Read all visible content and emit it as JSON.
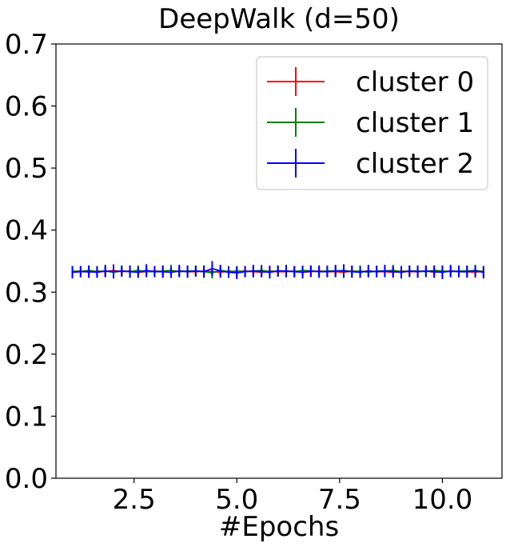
{
  "chart_data": {
    "type": "line",
    "title": "DeepWalk (d=50)",
    "xlabel": "#Epochs",
    "ylabel": "",
    "xlim": [
      0.6,
      11.45
    ],
    "ylim": [
      0.0,
      0.7
    ],
    "xticks": [
      2.5,
      5.0,
      7.5,
      10.0
    ],
    "xtick_labels": [
      "2.5",
      "5.0",
      "7.5",
      "10.0"
    ],
    "yticks": [
      0.0,
      0.1,
      0.2,
      0.3,
      0.4,
      0.5,
      0.6,
      0.7
    ],
    "ytick_labels": [
      "0.0",
      "0.1",
      "0.2",
      "0.3",
      "0.4",
      "0.5",
      "0.6",
      "0.7"
    ],
    "legend_position": "top-right",
    "x": [
      1.0,
      1.2,
      1.4,
      1.6,
      1.8,
      2.0,
      2.2,
      2.4,
      2.6,
      2.8,
      3.0,
      3.2,
      3.4,
      3.6,
      3.8,
      4.0,
      4.2,
      4.4,
      4.6,
      4.8,
      5.0,
      5.2,
      5.4,
      5.6,
      5.8,
      6.0,
      6.2,
      6.4,
      6.6,
      6.8,
      7.0,
      7.2,
      7.4,
      7.6,
      7.8,
      8.0,
      8.2,
      8.4,
      8.6,
      8.8,
      9.0,
      9.2,
      9.4,
      9.6,
      9.8,
      10.0,
      10.2,
      10.4,
      10.6,
      10.8,
      11.0
    ],
    "series": [
      {
        "name": "cluster 0",
        "color": "#ff0000",
        "values": [
          0.333,
          0.334,
          0.332,
          0.334,
          0.333,
          0.335,
          0.333,
          0.334,
          0.332,
          0.333,
          0.334,
          0.333,
          0.332,
          0.334,
          0.333,
          0.333,
          0.334,
          0.333,
          0.332,
          0.334,
          0.333,
          0.334,
          0.333,
          0.332,
          0.334,
          0.333,
          0.333,
          0.334,
          0.332,
          0.333,
          0.334,
          0.333,
          0.333,
          0.332,
          0.334,
          0.333,
          0.334,
          0.333,
          0.333,
          0.332,
          0.334,
          0.333,
          0.333,
          0.334,
          0.332,
          0.333,
          0.334,
          0.333,
          0.333,
          0.332,
          0.334
        ],
        "errors": [
          0.009,
          0.008,
          0.009,
          0.008,
          0.008,
          0.01,
          0.008,
          0.009,
          0.008,
          0.009,
          0.008,
          0.009,
          0.008,
          0.008,
          0.009,
          0.008,
          0.009,
          0.008,
          0.009,
          0.008,
          0.009,
          0.008,
          0.009,
          0.008,
          0.009,
          0.008,
          0.009,
          0.008,
          0.008,
          0.009,
          0.008,
          0.009,
          0.008,
          0.009,
          0.008,
          0.009,
          0.008,
          0.009,
          0.008,
          0.009,
          0.008,
          0.009,
          0.008,
          0.009,
          0.008,
          0.009,
          0.008,
          0.009,
          0.008,
          0.009,
          0.008
        ]
      },
      {
        "name": "cluster 1",
        "color": "#008000",
        "values": [
          0.334,
          0.333,
          0.335,
          0.333,
          0.334,
          0.332,
          0.334,
          0.333,
          0.335,
          0.333,
          0.333,
          0.334,
          0.335,
          0.333,
          0.334,
          0.334,
          0.333,
          0.331,
          0.335,
          0.333,
          0.334,
          0.333,
          0.334,
          0.335,
          0.333,
          0.334,
          0.334,
          0.333,
          0.335,
          0.334,
          0.333,
          0.334,
          0.334,
          0.335,
          0.333,
          0.334,
          0.332,
          0.334,
          0.334,
          0.335,
          0.333,
          0.334,
          0.334,
          0.333,
          0.335,
          0.334,
          0.333,
          0.334,
          0.334,
          0.335,
          0.333
        ],
        "errors": [
          0.008,
          0.009,
          0.008,
          0.009,
          0.008,
          0.009,
          0.008,
          0.009,
          0.008,
          0.009,
          0.008,
          0.008,
          0.009,
          0.008,
          0.009,
          0.008,
          0.009,
          0.009,
          0.008,
          0.009,
          0.008,
          0.009,
          0.008,
          0.009,
          0.008,
          0.009,
          0.008,
          0.009,
          0.008,
          0.009,
          0.008,
          0.009,
          0.008,
          0.009,
          0.008,
          0.009,
          0.008,
          0.009,
          0.008,
          0.009,
          0.008,
          0.009,
          0.008,
          0.009,
          0.008,
          0.009,
          0.008,
          0.009,
          0.008,
          0.009,
          0.008
        ]
      },
      {
        "name": "cluster 2",
        "color": "#0000ff",
        "values": [
          0.332,
          0.333,
          0.333,
          0.332,
          0.334,
          0.333,
          0.334,
          0.333,
          0.332,
          0.335,
          0.333,
          0.333,
          0.332,
          0.334,
          0.333,
          0.334,
          0.333,
          0.338,
          0.334,
          0.332,
          0.331,
          0.333,
          0.334,
          0.333,
          0.332,
          0.334,
          0.334,
          0.333,
          0.332,
          0.334,
          0.333,
          0.333,
          0.334,
          0.334,
          0.333,
          0.332,
          0.334,
          0.333,
          0.334,
          0.333,
          0.332,
          0.334,
          0.333,
          0.334,
          0.333,
          0.332,
          0.334,
          0.333,
          0.333,
          0.334,
          0.332
        ],
        "errors": [
          0.01,
          0.009,
          0.01,
          0.009,
          0.01,
          0.011,
          0.009,
          0.01,
          0.009,
          0.01,
          0.009,
          0.01,
          0.009,
          0.01,
          0.01,
          0.009,
          0.01,
          0.012,
          0.01,
          0.009,
          0.01,
          0.009,
          0.01,
          0.009,
          0.01,
          0.009,
          0.01,
          0.009,
          0.01,
          0.009,
          0.01,
          0.009,
          0.01,
          0.011,
          0.01,
          0.009,
          0.01,
          0.009,
          0.01,
          0.009,
          0.01,
          0.009,
          0.01,
          0.009,
          0.01,
          0.011,
          0.01,
          0.009,
          0.01,
          0.009,
          0.01
        ]
      }
    ]
  }
}
